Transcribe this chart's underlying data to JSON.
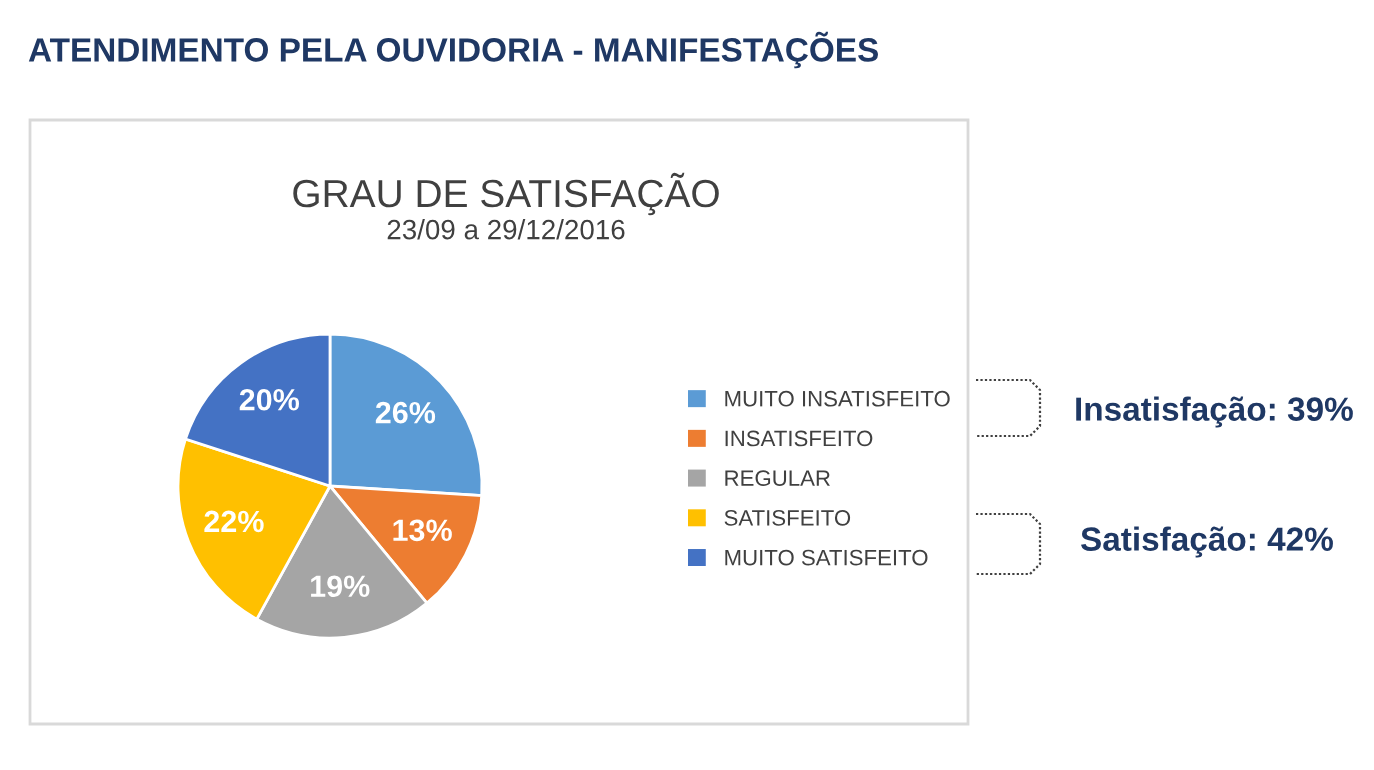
{
  "chart_data": {
    "type": "pie",
    "title": "GRAU DE SATISFAÇÃO",
    "subtitle": "23/09 a 29/12/2016",
    "annotations": [
      "ATENDIMENTO PELA OUVIDORIA - MANIFESTAÇÕES",
      "Insatisfação: 39%",
      "Satisfação: 42%"
    ],
    "categories": [
      "MUITO INSATISFEITO",
      "INSATISFEITO",
      "REGULAR",
      "SATISFEITO",
      "MUITO SATISFEITO"
    ],
    "values": [
      26,
      13,
      19,
      22,
      20
    ],
    "colors": [
      "#5b9bd5",
      "#ed7d31",
      "#a5a5a5",
      "#ffc000",
      "#4472c4"
    ],
    "value_labels": [
      "26%",
      "13%",
      "19%",
      "22%",
      "20%"
    ],
    "legend": "right"
  }
}
